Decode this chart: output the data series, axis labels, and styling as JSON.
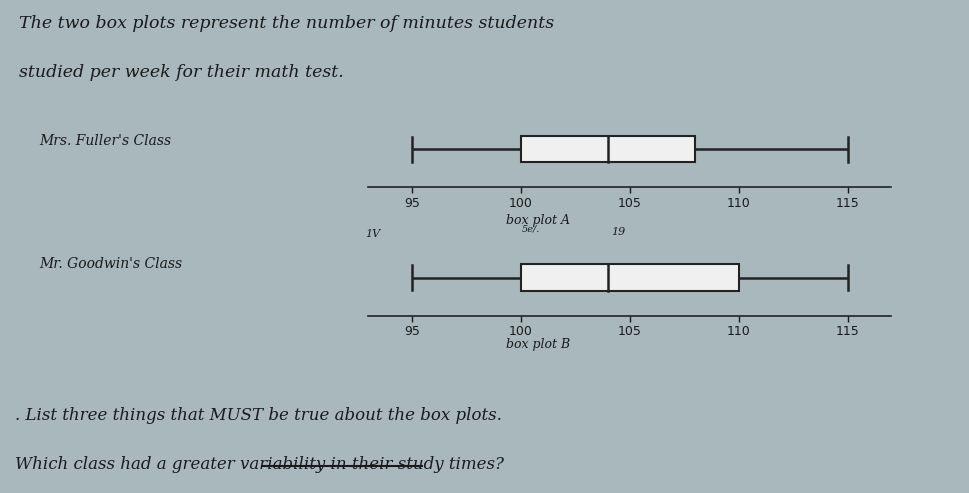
{
  "title_line1": "The two box plots represent the number of minutes students",
  "title_line2": "studied per week for their math test.",
  "label_A": "Mrs. Fuller's Class",
  "label_B": "Mr. Goodwin's Class",
  "boxplot_A": {
    "min": 95,
    "q1": 100,
    "median": 104,
    "q3": 108,
    "max": 115
  },
  "boxplot_B": {
    "min": 95,
    "q1": 100,
    "median": 104,
    "q3": 110,
    "max": 115
  },
  "axis_ticks": [
    95,
    100,
    105,
    110,
    115
  ],
  "label_boxA": "box plot A",
  "label_boxB": "box plot B",
  "annotation_B_left": "1V",
  "annotation_B_right": "19",
  "annotation_B_mid": "5e/.",
  "question1": ". List three things that MUST be true about the box plots.",
  "question2": "Which class had a greater variability in their study times?",
  "bg_color": "#a8b8bc",
  "text_color": "#1a1a1a",
  "box_color": "#f0f0f0",
  "box_edge_color": "#222222",
  "whisker_color": "#222222"
}
